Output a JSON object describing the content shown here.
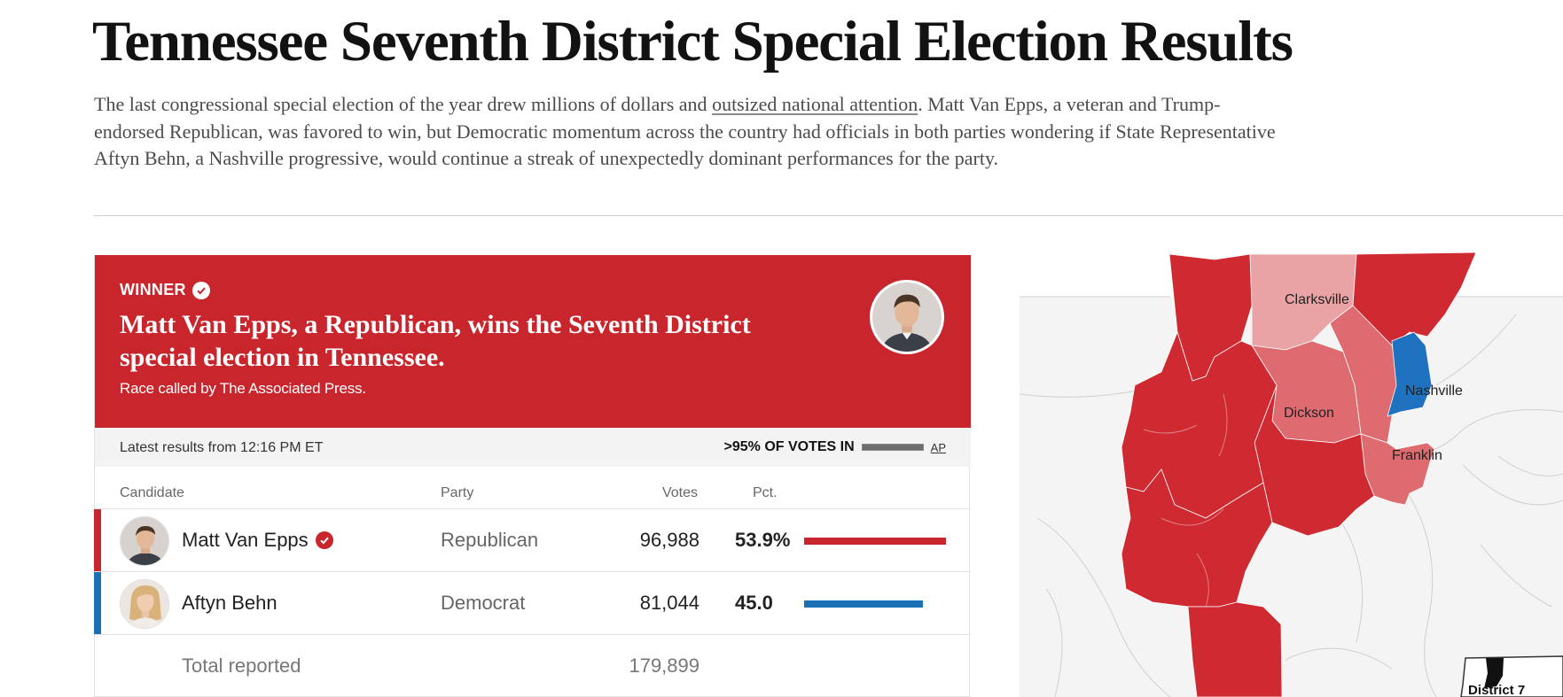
{
  "header": {
    "title": "Tennessee Seventh District Special Election Results",
    "dek_before": "The last congressional special election of the year drew millions of dollars and ",
    "dek_link": "outsized national attention",
    "dek_after": ". Matt Van Epps, a veteran and Trump-endorsed Republican, was favored to win, but Democratic momentum across the country had officials in both parties wondering if State Representative Aftyn Behn, a Nashville progressive, would continue a streak of unexpectedly dominant performances for the party."
  },
  "winner_banner": {
    "label": "WINNER",
    "headline": "Matt Van Epps, a Republican, wins the Seventh District special election in Tennessee.",
    "race_called": "Race called by The Associated Press.",
    "color": "#c9252c"
  },
  "status": {
    "latest": "Latest results from 12:16 PM ET",
    "votes_in": ">95% OF VOTES IN",
    "source": "AP"
  },
  "table": {
    "headers": {
      "candidate": "Candidate",
      "party": "Party",
      "votes": "Votes",
      "pct": "Pct."
    },
    "rows": [
      {
        "name": "Matt Van Epps",
        "party": "Republican",
        "votes": "96,988",
        "pct": "53.9%",
        "share": 0.539,
        "color": "#c9252c",
        "winner": true
      },
      {
        "name": "Aftyn Behn",
        "party": "Democrat",
        "votes": "81,044",
        "pct": "45.0",
        "share": 0.45,
        "color": "#1a6fb5",
        "winner": false
      }
    ],
    "total_label": "Total reported",
    "total_votes": "179,899"
  },
  "map": {
    "labels": {
      "clarksville": "Clarksville",
      "nashville": "Nashville",
      "dickson": "Dickson",
      "franklin": "Franklin",
      "inset": "District 7"
    },
    "colors": {
      "rep_strong": "#cf2a31",
      "rep_medium": "#de6b6f",
      "rep_light": "#e9a3a5",
      "dem": "#1f72c0",
      "land": "#f4f4f4",
      "road": "#cfcfcf"
    }
  }
}
